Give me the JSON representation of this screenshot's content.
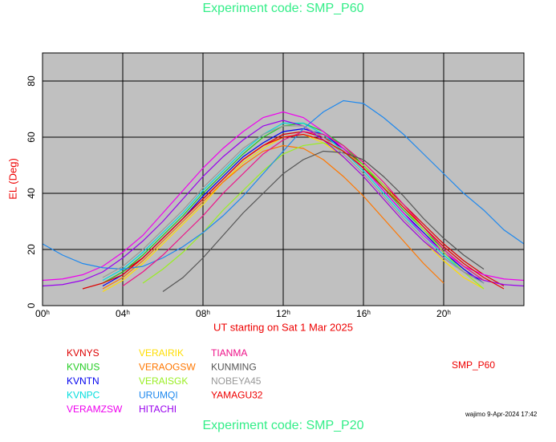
{
  "chart_data": {
    "type": "line",
    "title": "Experiment code: SMP_P60",
    "subtitle": "Experiment code: SMP_P20",
    "x_label": "UT starting on Sat   1 Mar 2025",
    "y_label": "EL (Deg)",
    "annotations": [
      "SMP_P60",
      "wajimo  9-Apr-2024 17:42"
    ],
    "xlim": [
      0,
      24
    ],
    "ylim": [
      0,
      90
    ],
    "xticks": [
      {
        "value": 0,
        "label": "00ʰ"
      },
      {
        "value": 4,
        "label": "04ʰ"
      },
      {
        "value": 8,
        "label": "08ʰ"
      },
      {
        "value": 12,
        "label": "12ʰ"
      },
      {
        "value": 16,
        "label": "16ʰ"
      },
      {
        "value": 20,
        "label": "20ʰ"
      }
    ],
    "yticks": [
      0,
      20,
      40,
      60,
      80
    ],
    "grid": true,
    "series": [
      {
        "name": "KVNYS",
        "color": "#dd0000",
        "x": [
          2,
          3,
          4,
          5,
          6,
          7,
          8,
          9,
          10,
          11,
          12,
          13,
          14,
          15,
          16,
          17,
          18,
          19,
          20,
          21,
          22,
          23
        ],
        "values": [
          6,
          8,
          12,
          17,
          24,
          31,
          38,
          45,
          52,
          57,
          61,
          62,
          60,
          56,
          50,
          43,
          36,
          29,
          22,
          16,
          11,
          7
        ]
      },
      {
        "name": "KVNUS",
        "color": "#22cc22",
        "x": [
          3,
          4,
          5,
          6,
          7,
          8,
          9,
          10,
          11,
          12,
          13,
          14,
          15,
          16,
          17,
          18,
          19,
          20,
          21,
          22
        ],
        "values": [
          8,
          12,
          18,
          25,
          32,
          40,
          47,
          54,
          60,
          64,
          65,
          62,
          57,
          50,
          42,
          34,
          27,
          20,
          14,
          9
        ]
      },
      {
        "name": "KVNTN",
        "color": "#0000ee",
        "x": [
          3,
          4,
          5,
          6,
          7,
          8,
          9,
          10,
          11,
          12,
          13,
          14,
          15,
          16,
          17,
          18,
          19,
          20,
          21,
          22
        ],
        "values": [
          7,
          11,
          17,
          24,
          31,
          39,
          46,
          53,
          58,
          62,
          63,
          61,
          56,
          49,
          41,
          33,
          26,
          19,
          13,
          8
        ]
      },
      {
        "name": "KVNPC",
        "color": "#00dddd",
        "x": [
          3,
          4,
          5,
          6,
          7,
          8,
          9,
          10,
          11,
          12,
          13,
          14,
          15,
          16,
          17,
          18,
          19,
          20,
          21,
          22
        ],
        "values": [
          9,
          13,
          19,
          26,
          33,
          41,
          48,
          55,
          61,
          65,
          65,
          61,
          55,
          48,
          40,
          32,
          25,
          18,
          12,
          8
        ]
      },
      {
        "name": "VERAMZSW",
        "color": "#ee00ee",
        "x": [
          0,
          1,
          2,
          3,
          4,
          5,
          6,
          7,
          8,
          9,
          10,
          11,
          12,
          13,
          14,
          15,
          16,
          17,
          18,
          19,
          20,
          21,
          22,
          23,
          24
        ],
        "values": [
          9,
          9.5,
          11,
          14,
          19,
          25,
          33,
          41,
          49,
          56,
          62,
          67,
          69,
          67,
          62,
          56,
          49,
          41,
          33,
          25,
          19,
          14,
          11,
          9.5,
          9
        ]
      },
      {
        "name": "VERAIRIK",
        "color": "#ffdd00",
        "x": [
          3,
          4,
          5,
          6,
          7,
          8,
          9,
          10,
          11,
          12,
          13,
          14,
          15,
          16,
          17,
          18,
          19,
          20,
          21,
          22
        ],
        "values": [
          5,
          9,
          15,
          22,
          29,
          36,
          44,
          51,
          56,
          60,
          61,
          58,
          53,
          46,
          38,
          30,
          23,
          16,
          10,
          6
        ]
      },
      {
        "name": "VERAOGSW",
        "color": "#ff7700",
        "x": [
          3,
          4,
          5,
          6,
          7,
          8,
          9,
          10,
          11,
          12,
          13,
          14,
          15,
          16,
          17,
          18,
          19,
          20
        ],
        "values": [
          6,
          10,
          16,
          23,
          30,
          37,
          44,
          50,
          55,
          57,
          56,
          52,
          46,
          39,
          31,
          23,
          15,
          8
        ]
      },
      {
        "name": "VERAISGK",
        "color": "#99ee22",
        "x": [
          5,
          6,
          7,
          8,
          9,
          10,
          11,
          12,
          13,
          14,
          15,
          16,
          17,
          18,
          19,
          20,
          21,
          22
        ],
        "values": [
          8,
          13,
          19,
          26,
          34,
          41,
          48,
          54,
          57,
          58,
          55,
          50,
          43,
          35,
          27,
          19,
          12,
          6
        ]
      },
      {
        "name": "URUMQI",
        "color": "#1e88ee",
        "x": [
          0,
          1,
          2,
          3,
          4,
          5,
          6,
          7,
          8,
          9,
          10,
          11,
          12,
          13,
          14,
          15,
          16,
          17,
          18,
          19,
          20,
          21,
          22,
          23,
          24
        ],
        "values": [
          22,
          18,
          15,
          13.5,
          13,
          14,
          17,
          21,
          26,
          32,
          39,
          47,
          55,
          63,
          69,
          73,
          72,
          67,
          61,
          54,
          47,
          40,
          34,
          27,
          22
        ]
      },
      {
        "name": "HITACHI",
        "color": "#9900ee",
        "x": [
          0,
          1,
          2,
          3,
          4,
          5,
          6,
          7,
          8,
          9,
          10,
          11,
          12,
          13,
          14,
          15,
          16,
          17,
          18,
          19,
          20,
          21,
          22,
          23,
          24
        ],
        "values": [
          7,
          7.5,
          9,
          12,
          17,
          23,
          30,
          38,
          46,
          53,
          59,
          64,
          66,
          64,
          59,
          53,
          46,
          38,
          30,
          23,
          17,
          12,
          9,
          7.5,
          7
        ]
      },
      {
        "name": "TIANMA",
        "color": "#ee1188",
        "x": [
          4,
          5,
          6,
          7,
          8,
          9,
          10,
          11,
          12,
          13,
          14,
          15,
          16,
          17,
          18,
          19,
          20,
          21,
          22
        ],
        "values": [
          7,
          12,
          18,
          25,
          32,
          40,
          47,
          54,
          59,
          62,
          61,
          57,
          51,
          44,
          36,
          28,
          20,
          14,
          9
        ]
      },
      {
        "name": "KUNMING",
        "color": "#555555",
        "x": [
          6,
          7,
          8,
          9,
          10,
          11,
          12,
          13,
          14,
          15,
          16,
          17,
          18,
          19,
          20,
          21,
          22
        ],
        "values": [
          5,
          10,
          17,
          25,
          33,
          40,
          47,
          52,
          55,
          54.5,
          52,
          46,
          39,
          31,
          24,
          18,
          13
        ]
      },
      {
        "name": "NOBEYA45",
        "color": "#999999",
        "x": [
          3,
          4,
          5,
          6,
          7,
          8,
          9,
          10,
          11,
          12,
          13,
          14,
          15,
          16,
          17,
          18,
          19,
          20,
          21,
          22
        ],
        "values": [
          10,
          14,
          20,
          27,
          34,
          42,
          49,
          56,
          61,
          64,
          64,
          60,
          54,
          47,
          39,
          31,
          24,
          17,
          12,
          8
        ]
      },
      {
        "name": "YAMAGU32",
        "color": "#ee0000",
        "x": [
          3,
          4,
          5,
          6,
          7,
          8,
          9,
          10,
          11,
          12,
          13,
          14,
          15,
          16,
          17,
          18,
          19,
          20,
          21,
          22,
          23
        ],
        "values": [
          8,
          11,
          17,
          24,
          31,
          38,
          45,
          52,
          57,
          60,
          61,
          59,
          55,
          49,
          42,
          35,
          28,
          21,
          15,
          10,
          6
        ]
      }
    ]
  }
}
